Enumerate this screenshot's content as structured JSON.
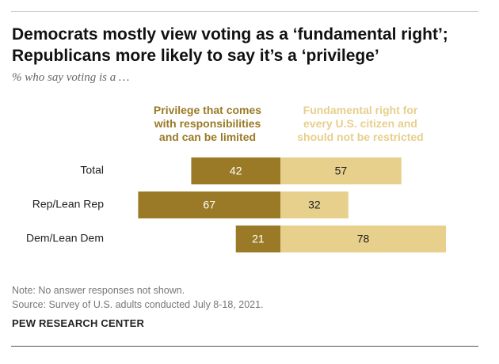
{
  "header": {
    "title_line1": "Democrats mostly view voting as a ‘fundamental right’;",
    "title_line2": "Republicans more likely to say it’s a ‘privilege’",
    "subtitle": "% who say voting is a …"
  },
  "legend": {
    "privilege_lines": [
      "Privilege that comes",
      "with responsibilities",
      "and can be limited"
    ],
    "fundamental_lines": [
      "Fundamental right for",
      "every U.S. citizen and",
      "should not be restricted"
    ]
  },
  "colors": {
    "privilege": "#9a7a26",
    "fundamental": "#e7cf8c",
    "privilege_text": "#ffffff",
    "fundamental_text": "#222222"
  },
  "chart_data": {
    "type": "bar",
    "orientation": "horizontal",
    "layout": "diverging",
    "categories": [
      "Total",
      "Rep/Lean Rep",
      "Dem/Lean Dem"
    ],
    "series": [
      {
        "name": "Privilege that comes with responsibilities and can be limited",
        "values": [
          42,
          67,
          21
        ]
      },
      {
        "name": "Fundamental right for every U.S. citizen and should not be restricted",
        "values": [
          57,
          32,
          78
        ]
      }
    ],
    "title": "Democrats mostly view voting as a ‘fundamental right’; Republicans more likely to say it’s a ‘privilege’",
    "subtitle": "% who say voting is a …",
    "legend_position": "top",
    "grid": false
  },
  "footer": {
    "note": "Note: No answer responses not shown.",
    "source": "Source: Survey of U.S. adults conducted July 8-18, 2021.",
    "brand": "PEW RESEARCH CENTER"
  }
}
